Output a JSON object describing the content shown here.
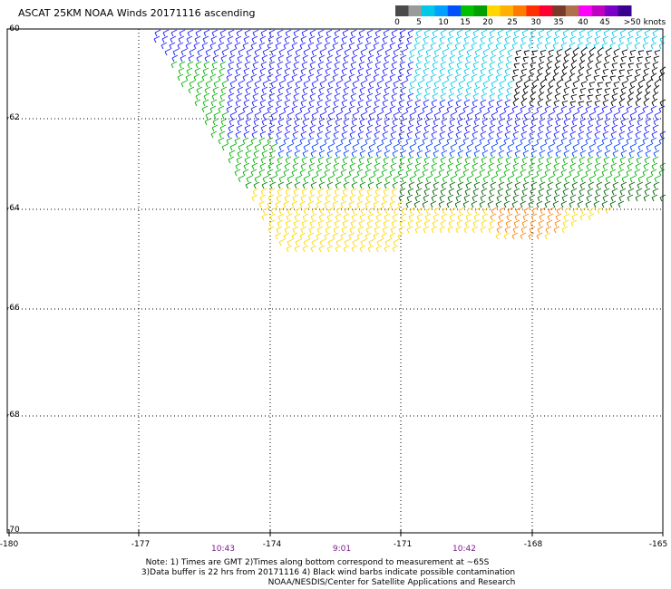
{
  "title": "ASCAT 25KM NOAA Winds 20171116 ascending",
  "legend": {
    "labels": [
      "0",
      "5",
      "10",
      "15",
      "20",
      "25",
      "30",
      "35",
      "40",
      "45",
      ">50 knots"
    ],
    "colors": [
      "#4a4a4a",
      "#9a9a9a",
      "#00c8e6",
      "#00a0ff",
      "#0050ff",
      "#00c000",
      "#00a000",
      "#ffd700",
      "#ffb000",
      "#ff7a00",
      "#ff3000",
      "#ff0030",
      "#7a3a2a",
      "#b0704a",
      "#ff00ff",
      "#c000c0",
      "#7a00c8",
      "#3a0090"
    ]
  },
  "lat_labels": [
    "-60",
    "-62",
    "-64",
    "-66",
    "-68",
    "-70"
  ],
  "lon_labels": [
    "-180",
    "-177",
    "-174",
    "-171",
    "-168",
    "-165"
  ],
  "times": [
    "10:43",
    "9:01",
    "10:42"
  ],
  "notes": [
    "Note: 1) Times are GMT 2)Times along bottom correspond to measurement at ~65S",
    "3)Data buffer is 22 hrs from 20171116 4) Black wind barbs indicate possible contamination",
    "NOAA/NESDIS/Center for Satellite Applications and Research"
  ]
}
